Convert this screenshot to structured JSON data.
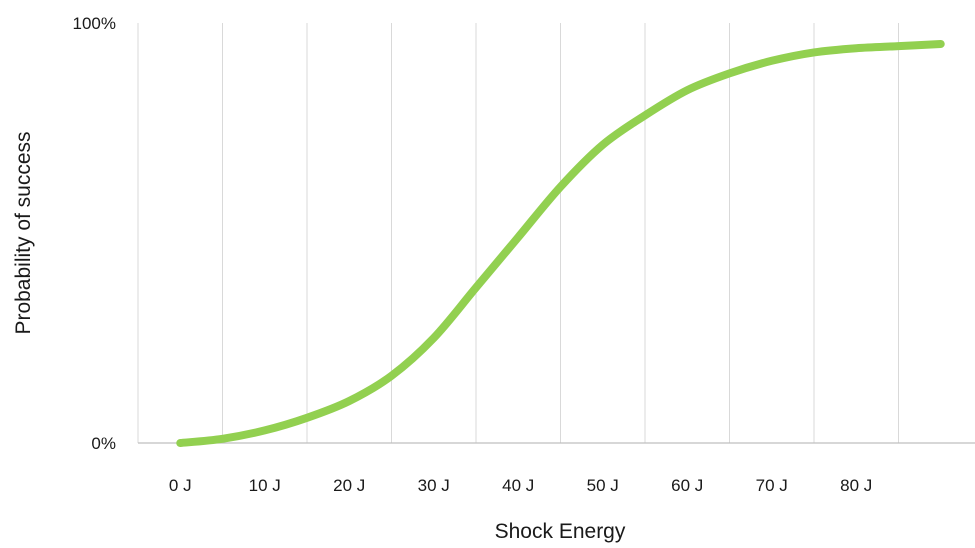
{
  "chart_data": {
    "type": "line",
    "title": "",
    "xlabel": "Shock Energy",
    "ylabel": "Probability of success",
    "x_tick_labels": [
      "0 J",
      "10 J",
      "20 J",
      "30 J",
      "40 J",
      "50 J",
      "60 J",
      "70 J",
      "80 J"
    ],
    "y_tick_labels": [
      "0%",
      "100%"
    ],
    "xlim": [
      0,
      90
    ],
    "ylim": [
      0,
      100
    ],
    "grid": "vertical",
    "legend": "none",
    "series": [
      {
        "color": "#92d050",
        "x": [
          0,
          5,
          10,
          15,
          20,
          25,
          30,
          35,
          40,
          45,
          50,
          55,
          60,
          65,
          70,
          75,
          80,
          85,
          90
        ],
        "y": [
          0,
          1,
          3,
          6,
          10,
          16,
          25,
          37,
          49,
          61,
          71,
          78,
          84,
          88,
          91,
          93,
          94,
          94.5,
          95
        ]
      }
    ]
  }
}
